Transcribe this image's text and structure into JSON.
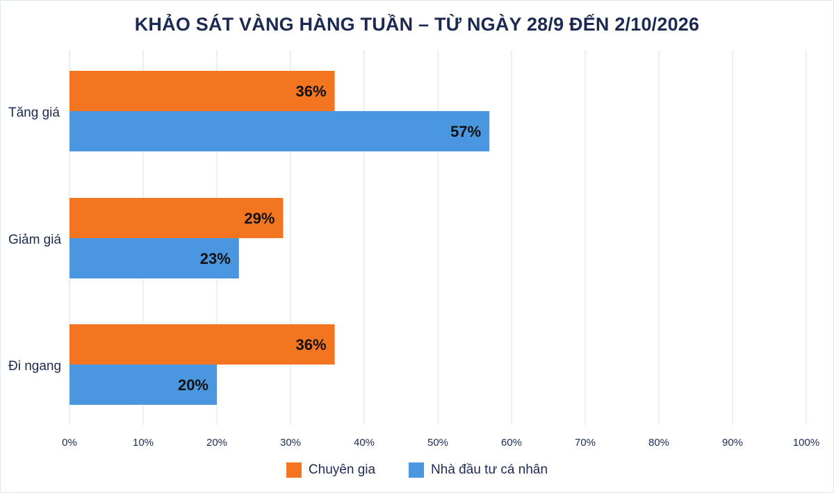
{
  "chart_data": {
    "type": "bar",
    "orientation": "horizontal",
    "title": "KHẢO SÁT VÀNG HÀNG TUẦN – TỪ NGÀY 28/9 ĐẾN 2/10/2026",
    "categories": [
      "Tăng giá",
      "Giảm giá",
      "Đi ngang"
    ],
    "series": [
      {
        "name": "Chuyên gia",
        "values": [
          36,
          29,
          36
        ],
        "labels": [
          "36%",
          "29%",
          "36%"
        ],
        "color": "#f47520"
      },
      {
        "name": "Nhà đầu tư cá nhân",
        "values": [
          57,
          23,
          20
        ],
        "labels": [
          "57%",
          "23%",
          "20%"
        ],
        "color": "#4a97e0"
      }
    ],
    "xlim": [
      0,
      100
    ],
    "x_ticks": [
      "0%",
      "10%",
      "20%",
      "30%",
      "40%",
      "50%",
      "60%",
      "70%",
      "80%",
      "90%",
      "100%"
    ],
    "grid": true,
    "legend_position": "bottom"
  }
}
